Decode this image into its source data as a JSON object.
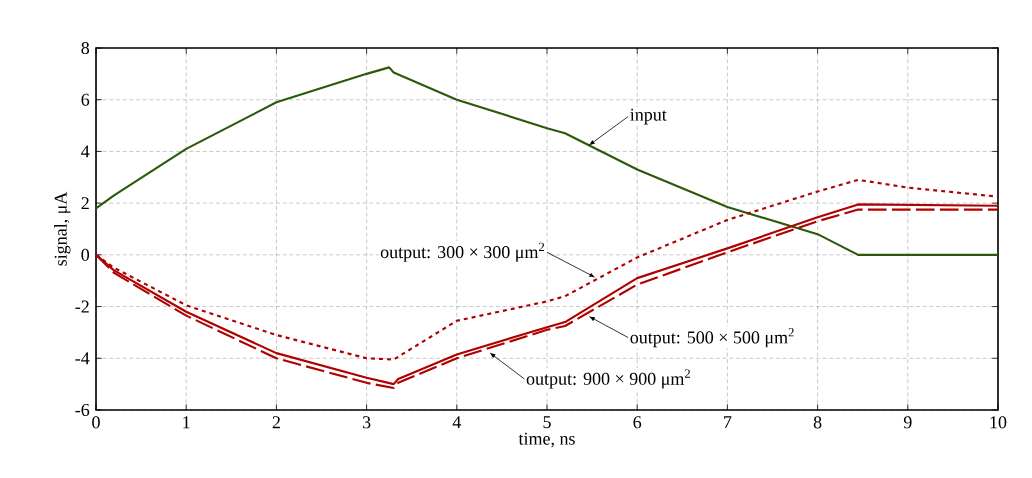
{
  "chart_data": {
    "type": "line",
    "xlabel": "time, ns",
    "ylabel": "signal, μA",
    "xlim": [
      0,
      10
    ],
    "ylim": [
      -6,
      8
    ],
    "xticks": [
      0,
      1,
      2,
      3,
      4,
      5,
      6,
      7,
      8,
      9,
      10
    ],
    "yticks": [
      -6,
      -4,
      -2,
      0,
      2,
      4,
      6,
      8
    ],
    "grid": true,
    "series": [
      {
        "color": "#2a5a0a",
        "line_style": "solid",
        "x": [
          0,
          0.2,
          1,
          2,
          2.5,
          3,
          3.25,
          3.3,
          4,
          5,
          5.2,
          6,
          7,
          8,
          8.45,
          10
        ],
        "values": [
          1.8,
          2.3,
          4.1,
          5.9,
          6.45,
          7.0,
          7.25,
          7.05,
          6.0,
          4.9,
          4.7,
          3.3,
          1.85,
          0.8,
          0,
          0
        ]
      },
      {
        "color": "#b00000",
        "line_style": "dotted",
        "x": [
          0,
          0.2,
          1,
          2,
          3,
          3.3,
          4,
          5,
          5.2,
          6,
          7,
          8,
          8.45,
          9,
          10
        ],
        "values": [
          0,
          -0.5,
          -1.95,
          -3.1,
          -4.0,
          -4.05,
          -2.55,
          -1.8,
          -1.6,
          -0.1,
          1.35,
          2.45,
          2.9,
          2.6,
          2.25
        ]
      },
      {
        "color": "#b00000",
        "line_style": "solid",
        "x": [
          0,
          0.2,
          1,
          2,
          3,
          3.3,
          3.35,
          4,
          5,
          5.2,
          6,
          7,
          8,
          8.45,
          10
        ],
        "values": [
          0,
          -0.6,
          -2.2,
          -3.8,
          -4.75,
          -5.0,
          -4.8,
          -3.85,
          -2.8,
          -2.6,
          -0.9,
          0.25,
          1.45,
          1.95,
          1.9
        ]
      },
      {
        "color": "#b00000",
        "line_style": "dashed",
        "x": [
          0,
          0.2,
          1,
          2,
          3,
          3.3,
          3.35,
          4,
          5,
          5.2,
          6,
          7,
          8,
          8.45,
          10
        ],
        "values": [
          0,
          -0.7,
          -2.35,
          -4.0,
          -4.95,
          -5.15,
          -4.95,
          -4.0,
          -2.9,
          -2.75,
          -1.15,
          0.1,
          1.3,
          1.75,
          1.75
        ]
      }
    ],
    "annotations": [
      {
        "text": "input",
        "x": 5.45,
        "y": 4.2
      },
      {
        "text": "output: 300 × 300 μm$^{2}$",
        "x": 5.55,
        "y": -0.9
      },
      {
        "text": "output: 500 × 500 μm$^{2}$",
        "x": 5.45,
        "y": -2.35
      },
      {
        "text": "output: 900 × 900 μm$^{2}$",
        "x": 4.35,
        "y": -3.75
      }
    ]
  }
}
